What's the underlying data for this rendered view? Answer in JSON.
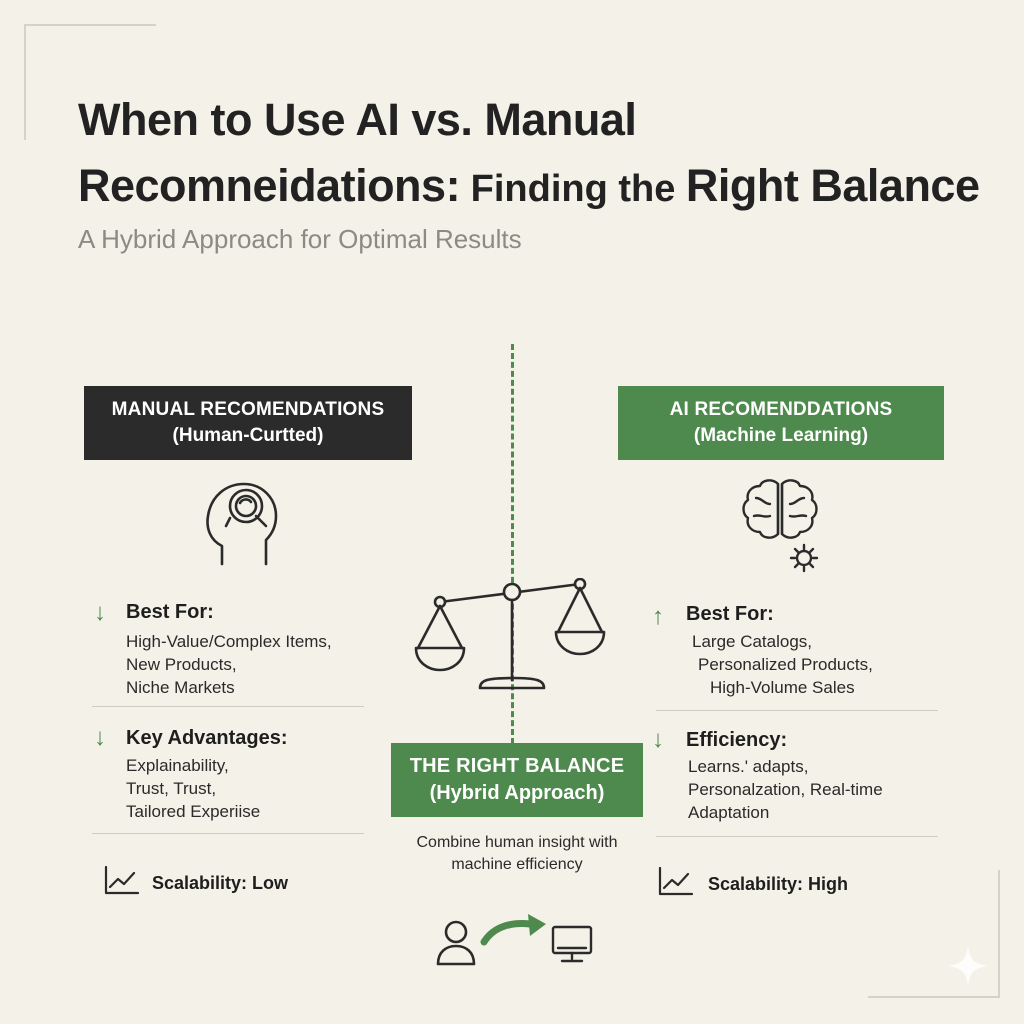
{
  "header": {
    "title_line1": "When to Use AI vs. Manual",
    "title_line2_part1": "Recomneidations:",
    "title_line2_part2": " Finding the ",
    "title_line2_part3": "Right Balance",
    "subtitle": "A Hybrid Approach for Optimal Results"
  },
  "manual": {
    "badge_line1": "MANUAL RECOMENDATIONS",
    "badge_line2": "(Human-Curtted)",
    "best_for_heading": "Best For:",
    "best_for_items": [
      "High-Value/Complex Items,",
      "New Products,",
      "Niche Markets"
    ],
    "advantages_heading": "Key Advantages:",
    "advantages_items": [
      "Explainability,",
      "Trust, Trust,",
      "Tailored Experiise"
    ],
    "scalability": "Scalability: Low"
  },
  "ai": {
    "badge_line1": "AI RECOMENDDATIONS",
    "badge_line2": "(Machine Learning)",
    "best_for_heading": "Best For:",
    "best_for_items": [
      "Large Catalogs,",
      "Personalized Products,",
      "High-Volume Sales"
    ],
    "efficiency_heading": "Efficiency:",
    "efficiency_items": [
      "Learns.' adapts,",
      "Personalzation, Real-time",
      "Adaptation"
    ],
    "scalability": "Scalability: High"
  },
  "balance": {
    "badge_line1": "THE RIGHT BALANCE",
    "badge_line2": "(Hybrid Approach)",
    "caption_line1": "Combine human insight with",
    "caption_line2": "machine efficiency"
  },
  "colors": {
    "background": "#f3f1e8",
    "accent_green": "#4e8a4d",
    "dark": "#2b2b2b"
  },
  "icons": {
    "manual": "head-magnifier-icon",
    "ai": "brain-gear-icon",
    "center": "balance-scale-icon",
    "trend": "trend-chart-icon",
    "person": "person-icon",
    "monitor": "monitor-icon",
    "sparkle": "sparkle-icon"
  }
}
